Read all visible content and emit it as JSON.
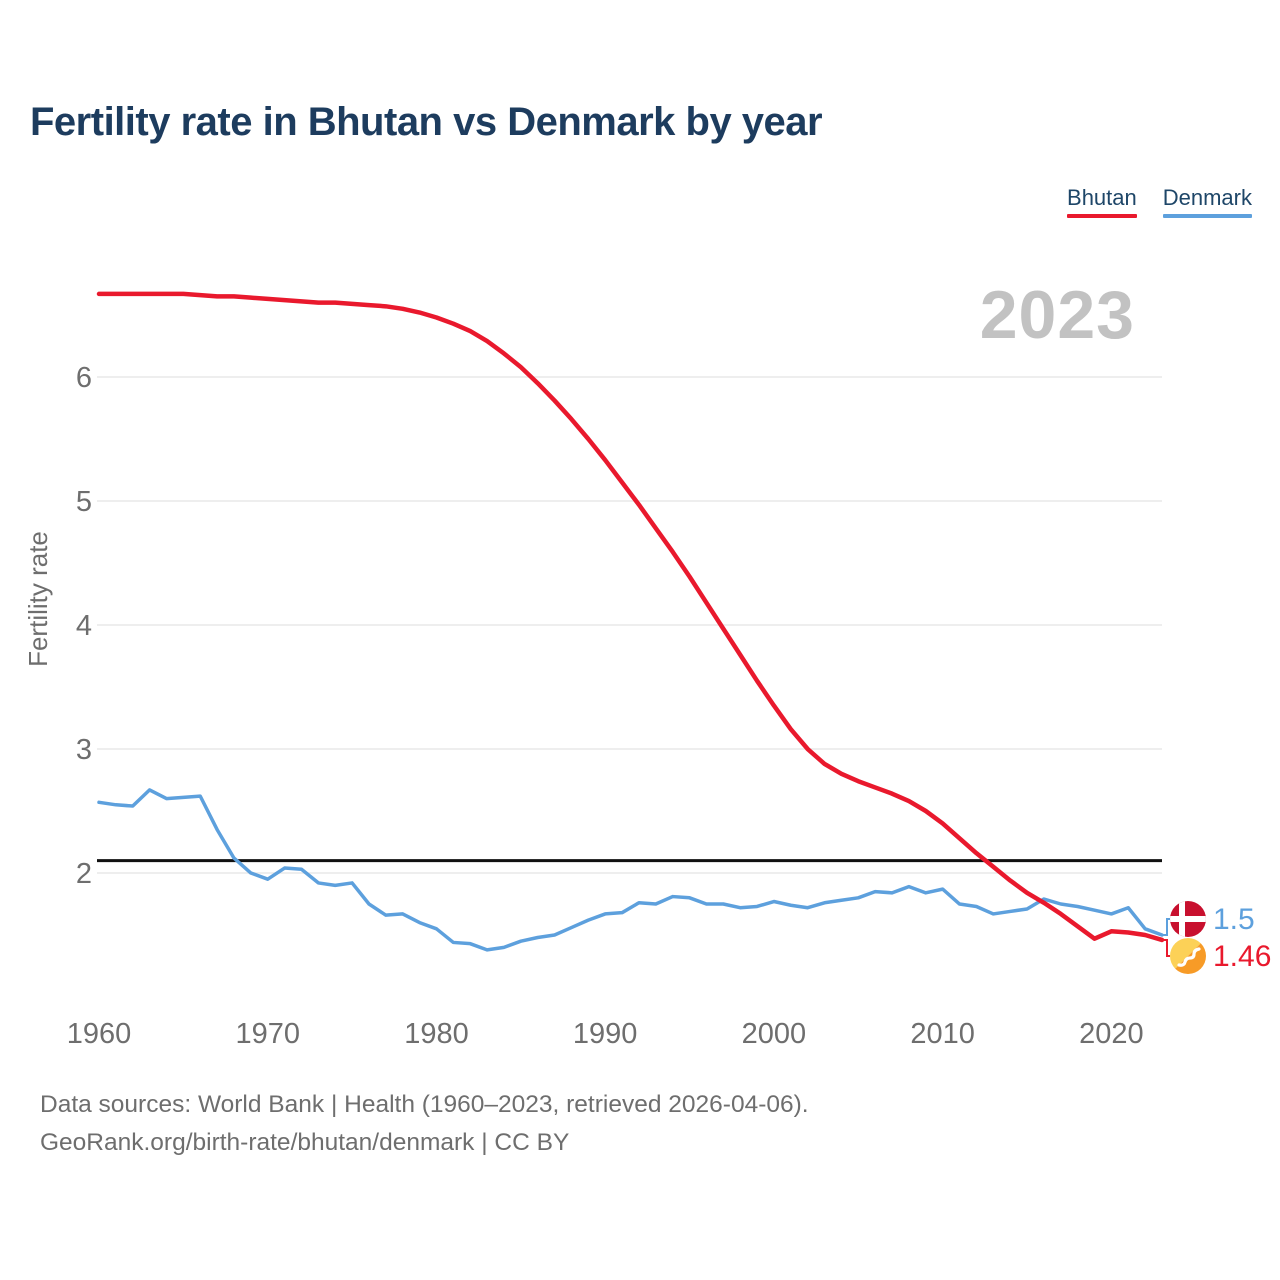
{
  "page": {
    "title": "Fertility rate in Bhutan vs Denmark by year",
    "watermark_year": "2023",
    "footer_line1": "Data sources: World Bank | Health (1960–2023, retrieved 2026-04-06).",
    "footer_line2": "GeoRank.org/birth-rate/bhutan/denmark | CC BY"
  },
  "chart_data": {
    "type": "line",
    "title": "Fertility rate in Bhutan vs Denmark by year",
    "xlabel": "",
    "ylabel": "Fertility rate",
    "x_range": [
      1960,
      2023
    ],
    "ylim": [
      1.3,
      6.8
    ],
    "xticks": [
      1960,
      1970,
      1980,
      1990,
      2000,
      2010,
      2020
    ],
    "yticks": [
      2,
      3,
      4,
      5,
      6
    ],
    "grid": "horizontal",
    "legend_position": "top-right",
    "watermark": "2023",
    "reference_line": {
      "value": 2.1,
      "color": "#111111"
    },
    "years": [
      1960,
      1961,
      1962,
      1963,
      1964,
      1965,
      1966,
      1967,
      1968,
      1969,
      1970,
      1971,
      1972,
      1973,
      1974,
      1975,
      1976,
      1977,
      1978,
      1979,
      1980,
      1981,
      1982,
      1983,
      1984,
      1985,
      1986,
      1987,
      1988,
      1989,
      1990,
      1991,
      1992,
      1993,
      1994,
      1995,
      1996,
      1997,
      1998,
      1999,
      2000,
      2001,
      2002,
      2003,
      2004,
      2005,
      2006,
      2007,
      2008,
      2009,
      2010,
      2011,
      2012,
      2013,
      2014,
      2015,
      2016,
      2017,
      2018,
      2019,
      2020,
      2021,
      2022,
      2023
    ],
    "series": [
      {
        "name": "Bhutan",
        "color": "#e9192d",
        "end_value_label": "1.46",
        "flag_icon": "bhutan-flag-icon",
        "values": [
          6.67,
          6.67,
          6.67,
          6.67,
          6.67,
          6.67,
          6.66,
          6.65,
          6.65,
          6.64,
          6.63,
          6.62,
          6.61,
          6.6,
          6.6,
          6.59,
          6.58,
          6.57,
          6.55,
          6.52,
          6.48,
          6.43,
          6.37,
          6.29,
          6.19,
          6.08,
          5.95,
          5.81,
          5.66,
          5.5,
          5.33,
          5.15,
          4.97,
          4.78,
          4.59,
          4.39,
          4.18,
          3.97,
          3.76,
          3.55,
          3.35,
          3.16,
          3.0,
          2.88,
          2.8,
          2.74,
          2.69,
          2.64,
          2.58,
          2.5,
          2.4,
          2.28,
          2.16,
          2.05,
          1.94,
          1.84,
          1.76,
          1.67,
          1.57,
          1.47,
          1.53,
          1.52,
          1.5,
          1.46
        ]
      },
      {
        "name": "Denmark",
        "color": "#5da0dd",
        "end_value_label": "1.5",
        "flag_icon": "denmark-flag-icon",
        "values": [
          2.57,
          2.55,
          2.54,
          2.67,
          2.6,
          2.61,
          2.62,
          2.35,
          2.12,
          2.0,
          1.95,
          2.04,
          2.03,
          1.92,
          1.9,
          1.92,
          1.75,
          1.66,
          1.67,
          1.6,
          1.55,
          1.44,
          1.43,
          1.38,
          1.4,
          1.45,
          1.48,
          1.5,
          1.56,
          1.62,
          1.67,
          1.68,
          1.76,
          1.75,
          1.81,
          1.8,
          1.75,
          1.75,
          1.72,
          1.73,
          1.77,
          1.74,
          1.72,
          1.76,
          1.78,
          1.8,
          1.85,
          1.84,
          1.89,
          1.84,
          1.87,
          1.75,
          1.73,
          1.67,
          1.69,
          1.71,
          1.79,
          1.75,
          1.73,
          1.7,
          1.67,
          1.72,
          1.55,
          1.5
        ]
      }
    ]
  }
}
